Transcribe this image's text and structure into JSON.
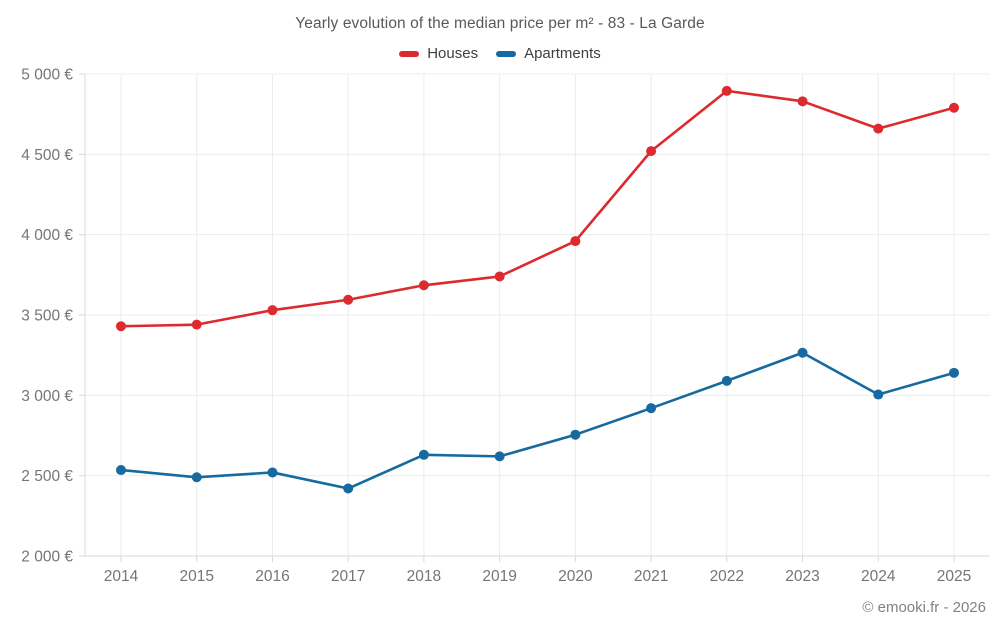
{
  "header": {
    "title": "Yearly evolution of the median price per m² - 83 - La Garde"
  },
  "legend": {
    "items": [
      {
        "label": "Houses",
        "color": "#dc2a2e"
      },
      {
        "label": "Apartments",
        "color": "#176a9f"
      }
    ]
  },
  "footer": {
    "credit": "© emooki.fr - 2026"
  },
  "colors": {
    "background": "#ffffff",
    "grid": "#ececec",
    "axis": "#d9d9d9",
    "tick_label": "#757575",
    "title_text": "#595959",
    "legend_text": "#3f3f3f",
    "footer_text": "#828282",
    "houses": "#dc2a2e",
    "apartments": "#176a9f"
  },
  "chart_data": {
    "type": "line",
    "title": "Yearly evolution of the median price per m² - 83 - La Garde",
    "x": [
      "2014",
      "2015",
      "2016",
      "2017",
      "2018",
      "2019",
      "2020",
      "2021",
      "2022",
      "2023",
      "2024",
      "2025"
    ],
    "series": [
      {
        "name": "Houses",
        "color": "#dc2a2e",
        "values": [
          3430,
          3440,
          3530,
          3595,
          3685,
          3740,
          3960,
          4520,
          4895,
          4830,
          4660,
          4790
        ]
      },
      {
        "name": "Apartments",
        "color": "#176a9f",
        "values": [
          2535,
          2490,
          2520,
          2420,
          2630,
          2620,
          2755,
          2920,
          3090,
          3265,
          3005,
          3140
        ]
      }
    ],
    "ylim": [
      2000,
      5000
    ],
    "ytick_step": 500,
    "yticks": [
      {
        "value": 2000,
        "label": "2 000 €"
      },
      {
        "value": 2500,
        "label": "2 500 €"
      },
      {
        "value": 3000,
        "label": "3 000 €"
      },
      {
        "value": 3500,
        "label": "3 500 €"
      },
      {
        "value": 4000,
        "label": "4 000 €"
      },
      {
        "value": 4500,
        "label": "4 500 €"
      },
      {
        "value": 5000,
        "label": "5 000 €"
      }
    ],
    "grid": true,
    "legend_position": "top",
    "marker": "circle",
    "ylabel": "",
    "xlabel": ""
  }
}
